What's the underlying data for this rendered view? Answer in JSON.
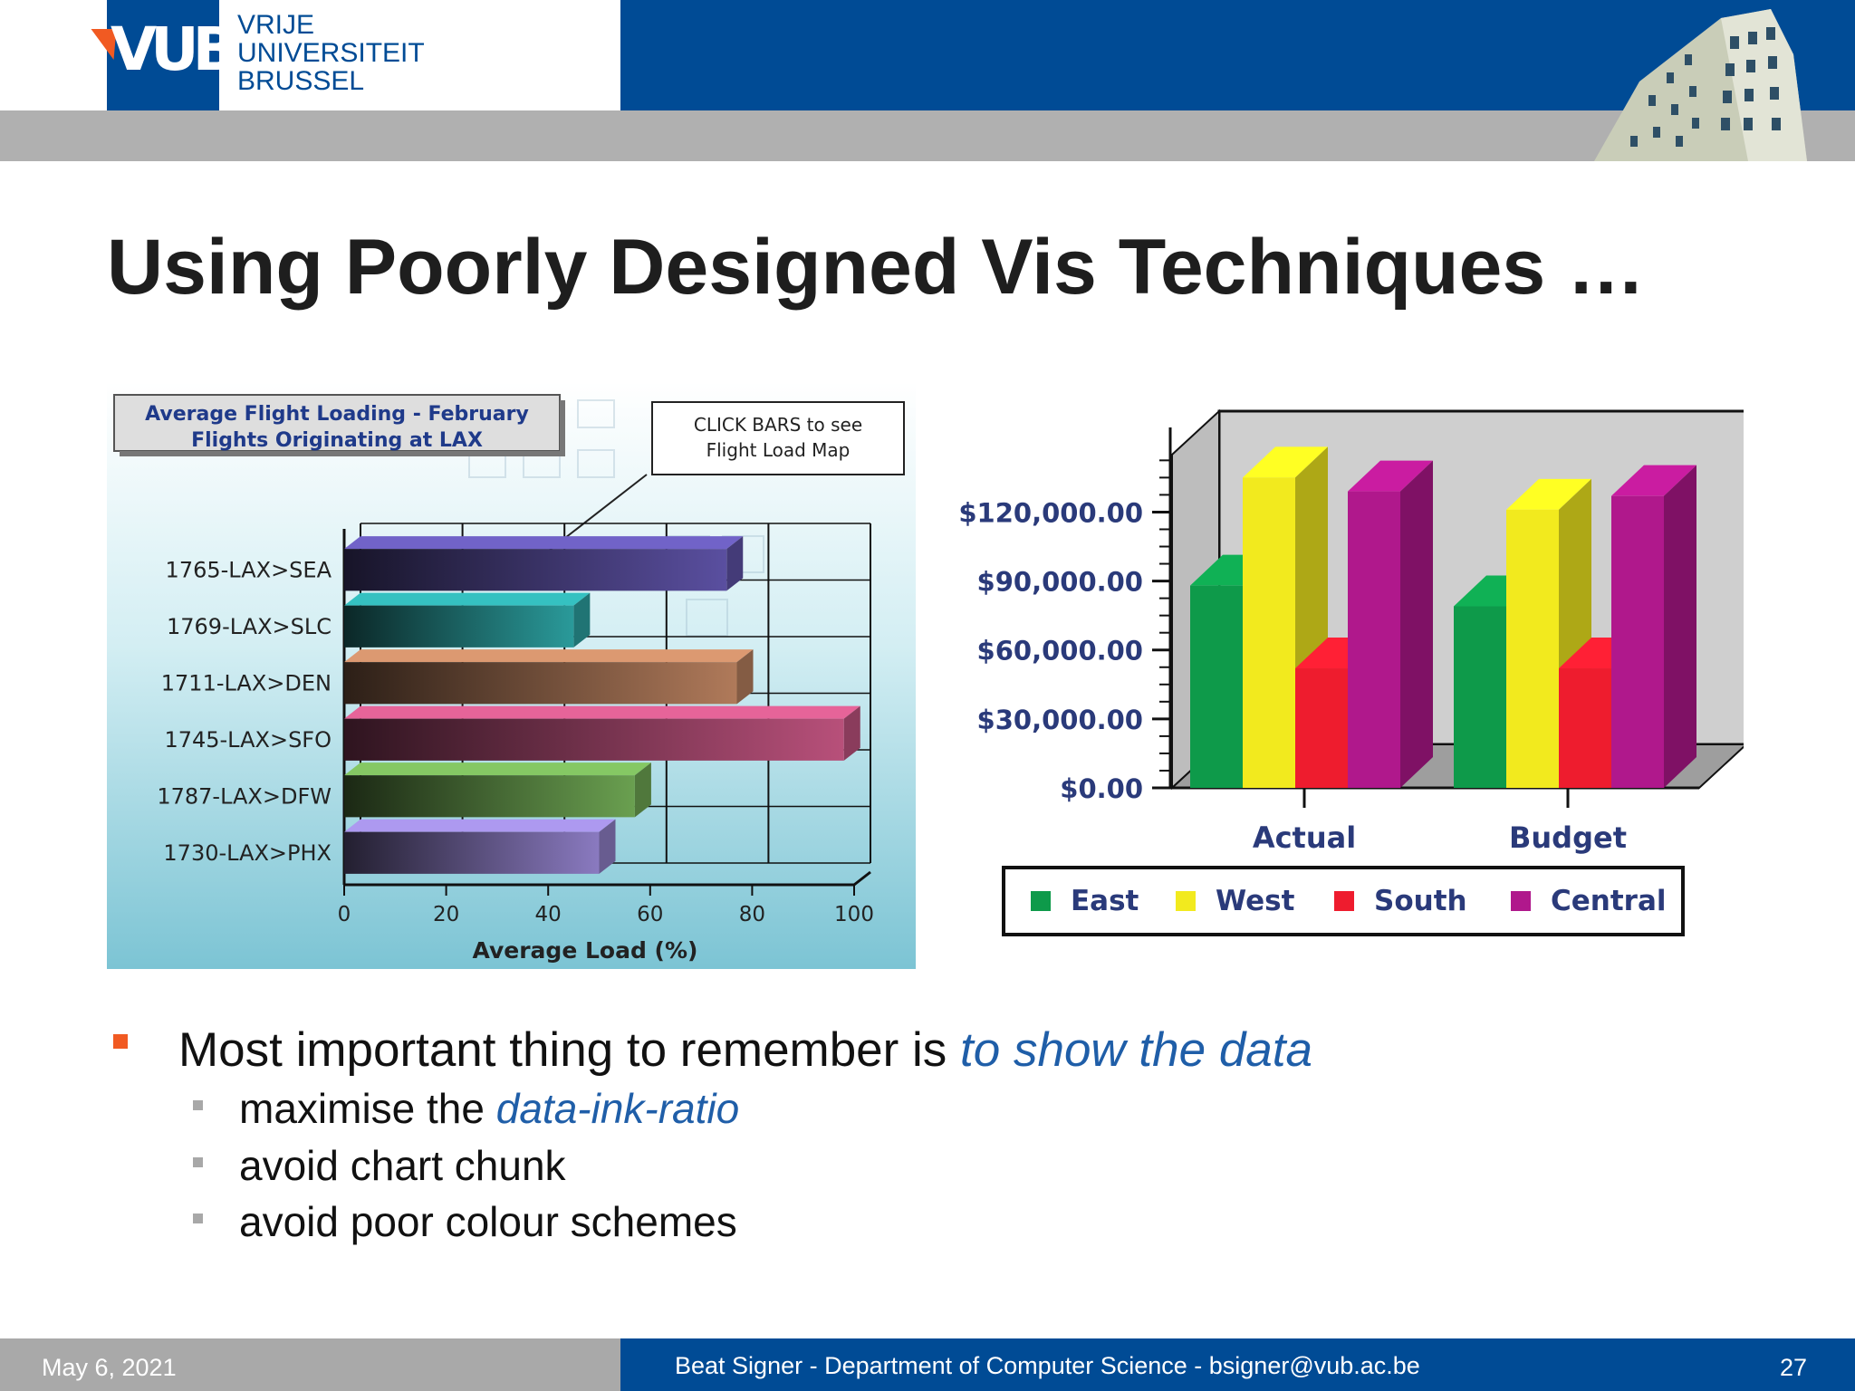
{
  "header": {
    "logo_mark": "VUB",
    "logo_lines": [
      "VRIJE",
      "UNIVERSITEIT",
      "BRUSSEL"
    ]
  },
  "slide": {
    "title": "Using Poorly Designed Vis Techniques …",
    "bullet": {
      "prefix": "Most important thing to remember is ",
      "emphasis": "to show the data"
    },
    "subbullets": [
      {
        "prefix": "maximise the ",
        "emphasis": "data-ink-ratio"
      },
      {
        "prefix": "avoid chart chunk",
        "emphasis": ""
      },
      {
        "prefix": "avoid poor colour schemes",
        "emphasis": ""
      }
    ]
  },
  "footer": {
    "date": "May 6, 2021",
    "center": "Beat Signer - Department of Computer Science - bsigner@vub.ac.be",
    "page": "27"
  },
  "chart_data": [
    {
      "type": "bar",
      "orientation": "horizontal",
      "title": "Average Flight Loading - February Flights Originating at LAX",
      "title_lines": [
        "Average Flight Loading -  February",
        "Flights Originating at LAX"
      ],
      "callout_lines": [
        "CLICK BARS to see",
        "Flight Load Map"
      ],
      "categories": [
        "1765-LAX>SEA",
        "1769-LAX>SLC",
        "1711-LAX>DEN",
        "1745-LAX>SFO",
        "1787-LAX>DFW",
        "1730-LAX>PHX"
      ],
      "values": [
        75,
        45,
        77,
        98,
        57,
        50
      ],
      "colors": [
        "#5a4fa0",
        "#2a9a9a",
        "#b07a5a",
        "#b8507a",
        "#6aa050",
        "#8a7ac0"
      ],
      "xlabel": "Average Load (%)",
      "ylabel": "",
      "xlim": [
        0,
        100
      ],
      "xticks": [
        "0",
        "20",
        "40",
        "60",
        "80",
        "100"
      ],
      "grid": true,
      "background": "#a9dbe6"
    },
    {
      "type": "bar",
      "style": "3d-grouped",
      "categories": [
        "Actual",
        "Budget"
      ],
      "series": [
        {
          "name": "East",
          "values": [
            88000,
            79000
          ],
          "color": "#0e9a4a"
        },
        {
          "name": "West",
          "values": [
            135000,
            121000
          ],
          "color": "#f2ea1e"
        },
        {
          "name": "South",
          "values": [
            52000,
            52000
          ],
          "color": "#ee1c2e"
        },
        {
          "name": "Central",
          "values": [
            129000,
            127000
          ],
          "color": "#b0188c"
        }
      ],
      "ylim": [
        0,
        145000
      ],
      "yticks": [
        "$0.00",
        "$30,000.00",
        "$60,000.00",
        "$90,000.00",
        "$120,000.00"
      ],
      "legend": "bottom",
      "xlabel": "",
      "ylabel": ""
    }
  ]
}
